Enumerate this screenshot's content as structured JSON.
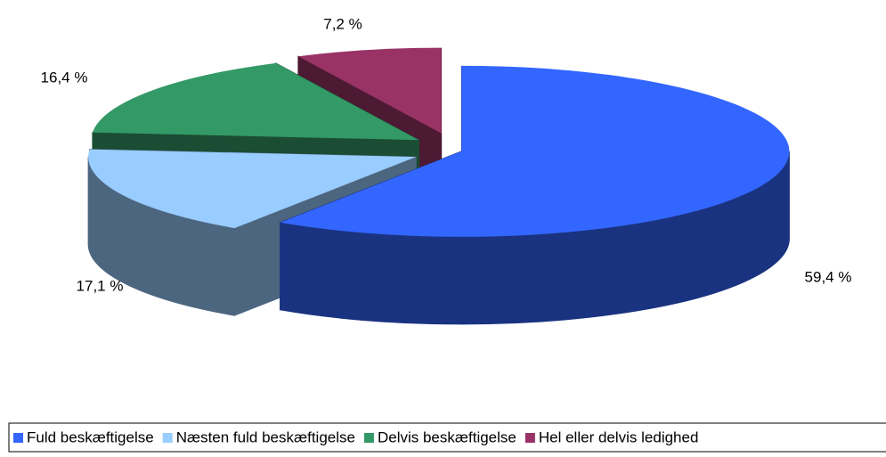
{
  "chart_data": {
    "type": "pie",
    "categories": [
      "Fuld beskæftigelse",
      "Næsten fuld beskæftigelse",
      "Delvis beskæftigelse",
      "Hel eller delvis ledighed"
    ],
    "values": [
      59.4,
      17.1,
      16.4,
      7.2
    ],
    "value_labels": [
      "59,4 %",
      "17,1 %",
      "16,4 %",
      "7,2 %"
    ],
    "colors": [
      "#3366ff",
      "#99ccff",
      "#339966",
      "#993366"
    ]
  }
}
